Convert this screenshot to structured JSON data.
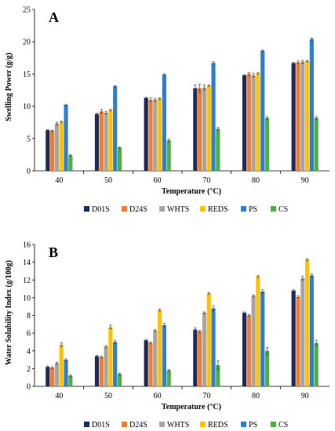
{
  "colors": {
    "D01S": "#1f2a5c",
    "D24S": "#ed7d31",
    "WHTS": "#a5a5a5",
    "REDS": "#ffc000",
    "PS": "#2f7fd0",
    "CS": "#4fae45"
  },
  "chart_data": [
    {
      "type": "bar",
      "panel_label": "A",
      "xlabel": "Temperature (°C)",
      "ylabel": "Swelling Power (g/g)",
      "ylim": [
        0,
        25
      ],
      "yticks": [
        0,
        5,
        10,
        15,
        20,
        25
      ],
      "grid": false,
      "legend_position": "bottom",
      "error_bars": true,
      "categories": [
        "40",
        "50",
        "60",
        "70",
        "80",
        "90"
      ],
      "series": [
        {
          "name": "D01S",
          "values": [
            6.3,
            8.8,
            11.3,
            12.8,
            14.8,
            16.7
          ],
          "errors": [
            0.1,
            0.1,
            0.1,
            0.5,
            0.1,
            0.1
          ]
        },
        {
          "name": "D24S",
          "values": [
            6.2,
            9.2,
            11.0,
            12.8,
            15.0,
            16.8
          ],
          "errors": [
            0.1,
            0.3,
            0.3,
            0.6,
            0.2,
            0.2
          ]
        },
        {
          "name": "WHTS",
          "values": [
            7.3,
            9.0,
            11.0,
            12.9,
            14.8,
            16.9
          ],
          "errors": [
            0.2,
            0.2,
            0.2,
            0.4,
            0.3,
            0.2
          ]
        },
        {
          "name": "REDS",
          "values": [
            7.6,
            9.4,
            11.2,
            13.2,
            15.1,
            17.0
          ],
          "errors": [
            0.1,
            0.1,
            0.1,
            0.1,
            0.1,
            0.1
          ]
        },
        {
          "name": "PS",
          "values": [
            10.2,
            13.1,
            14.9,
            16.7,
            18.6,
            20.4
          ],
          "errors": [
            0.1,
            0.1,
            0.1,
            0.2,
            0.1,
            0.2
          ]
        },
        {
          "name": "CS",
          "values": [
            2.4,
            3.6,
            4.7,
            6.5,
            8.2,
            8.2
          ],
          "errors": [
            0.1,
            0.1,
            0.2,
            0.2,
            0.2,
            0.2
          ]
        }
      ]
    },
    {
      "type": "bar",
      "panel_label": "B",
      "xlabel": "Temperature (°C)",
      "ylabel": "Water Solubility Index (g/100g)",
      "ylim": [
        0,
        16
      ],
      "yticks": [
        0,
        2,
        4,
        6,
        8,
        10,
        12,
        14,
        16
      ],
      "grid": false,
      "legend_position": "bottom",
      "error_bars": true,
      "categories": [
        "40",
        "50",
        "60",
        "70",
        "80",
        "90"
      ],
      "series": [
        {
          "name": "D01S",
          "values": [
            2.2,
            3.4,
            5.2,
            6.4,
            8.3,
            10.8
          ],
          "errors": [
            0.1,
            0.1,
            0.1,
            0.2,
            0.1,
            0.1
          ]
        },
        {
          "name": "D24S",
          "values": [
            2.1,
            3.3,
            4.9,
            6.2,
            8.0,
            10.1
          ],
          "errors": [
            0.1,
            0.1,
            0.1,
            0.1,
            0.1,
            0.1
          ]
        },
        {
          "name": "WHTS",
          "values": [
            2.6,
            4.5,
            6.3,
            8.3,
            10.2,
            12.2
          ],
          "errors": [
            0.1,
            0.1,
            0.1,
            0.1,
            0.1,
            0.2
          ]
        },
        {
          "name": "REDS",
          "values": [
            4.7,
            6.7,
            8.6,
            10.5,
            12.4,
            14.3
          ],
          "errors": [
            0.2,
            0.2,
            0.1,
            0.1,
            0.1,
            0.1
          ]
        },
        {
          "name": "PS",
          "values": [
            3.0,
            5.0,
            6.9,
            8.8,
            10.7,
            12.5
          ],
          "errors": [
            0.1,
            0.2,
            0.2,
            0.3,
            0.2,
            0.2
          ]
        },
        {
          "name": "CS",
          "values": [
            1.2,
            1.4,
            1.8,
            2.4,
            4.0,
            4.9
          ],
          "errors": [
            0.1,
            0.1,
            0.1,
            0.5,
            0.4,
            0.3
          ]
        }
      ]
    }
  ]
}
